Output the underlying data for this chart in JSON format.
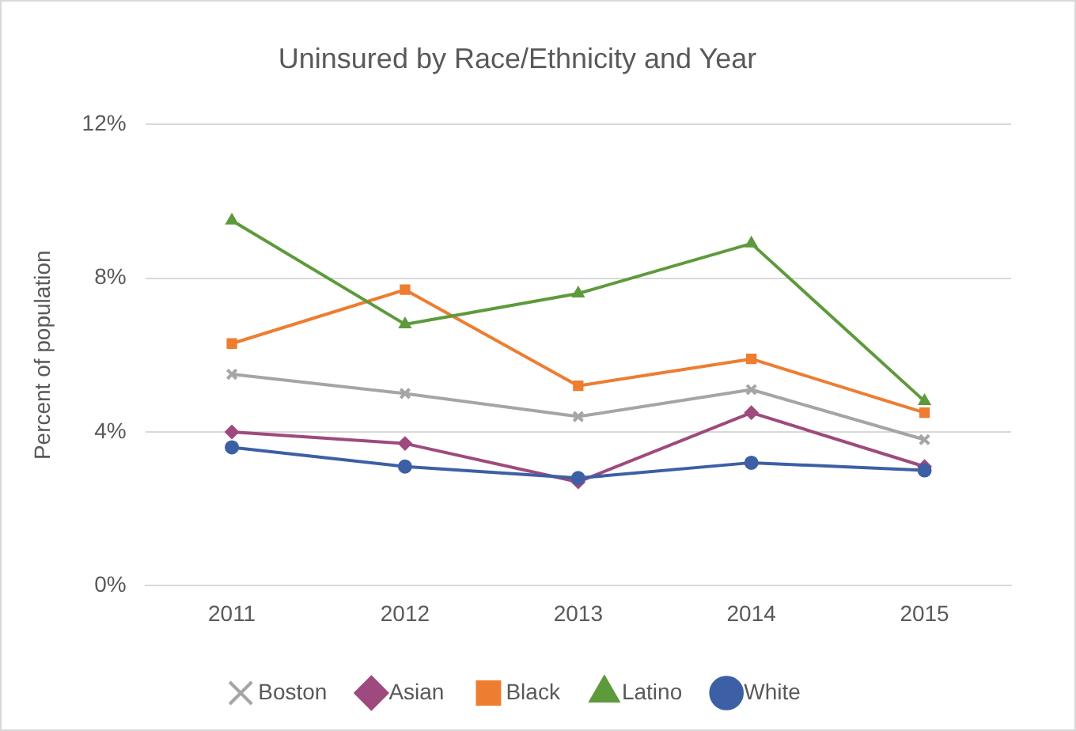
{
  "chart_data": {
    "type": "line",
    "title": "Uninsured by Race/Ethnicity and Year",
    "ylabel": "Percent of population",
    "categories": [
      "2011",
      "2012",
      "2013",
      "2014",
      "2015"
    ],
    "series": [
      {
        "name": "Boston",
        "color": "#a5a5a5",
        "marker": "cross",
        "values": [
          5.5,
          5.0,
          4.4,
          5.1,
          3.8
        ]
      },
      {
        "name": "Asian",
        "color": "#9e4a7e",
        "marker": "diamond",
        "values": [
          4.0,
          3.7,
          2.7,
          4.5,
          3.1
        ]
      },
      {
        "name": "Black",
        "color": "#ed7d31",
        "marker": "square",
        "values": [
          6.3,
          7.7,
          5.2,
          5.9,
          4.5
        ]
      },
      {
        "name": "Latino",
        "color": "#5e9a3c",
        "marker": "triangle",
        "values": [
          9.5,
          6.8,
          7.6,
          8.9,
          4.8
        ]
      },
      {
        "name": "White",
        "color": "#3d5fa6",
        "marker": "circle",
        "values": [
          3.6,
          3.1,
          2.8,
          3.2,
          3.0
        ]
      }
    ],
    "ylim": [
      0,
      12
    ],
    "yticks": [
      {
        "value": 0,
        "label": "0%"
      },
      {
        "value": 4,
        "label": "4%"
      },
      {
        "value": 8,
        "label": "8%"
      },
      {
        "value": 12,
        "label": "12%"
      }
    ],
    "grid": "y",
    "legend": "bottom",
    "line_style": "solid"
  }
}
